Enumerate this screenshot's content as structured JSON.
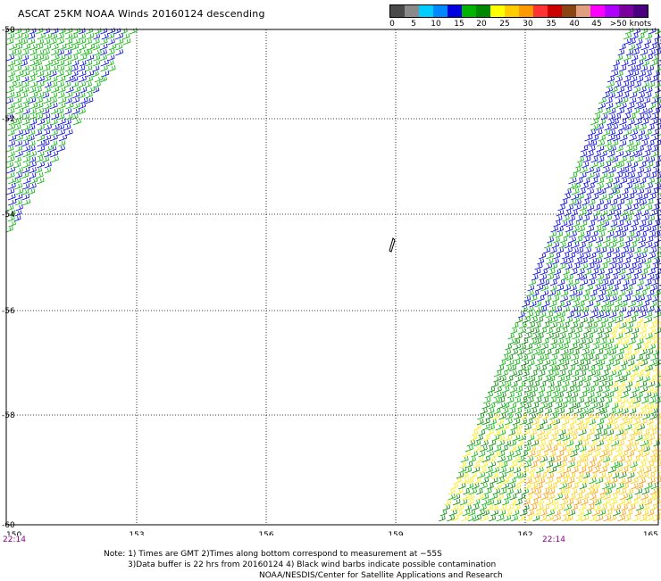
{
  "title": "ASCAT 25KM NOAA Winds 20160124 descending",
  "legend": {
    "colors": [
      "#4a4a4a",
      "#8a8a8a",
      "#00ccff",
      "#0088ff",
      "#0000e0",
      "#00b400",
      "#008800",
      "#ffff00",
      "#ffcc00",
      "#ff9900",
      "#ff3333",
      "#cc0000",
      "#8b4513",
      "#e0a080",
      "#ff00ff",
      "#b000ff",
      "#7a00a0",
      "#4b0082"
    ],
    "ticks": [
      {
        "label": "0",
        "value": 0
      },
      {
        "label": "5",
        "value": 5
      },
      {
        "label": "10",
        "value": 10
      },
      {
        "label": "15",
        "value": 15
      },
      {
        "label": "20",
        "value": 20
      },
      {
        "label": "25",
        "value": 25
      },
      {
        "label": "30",
        "value": 30
      },
      {
        "label": "35",
        "value": 35
      },
      {
        "label": "40",
        "value": 40
      },
      {
        "label": "45",
        "value": 45
      },
      {
        "label": ">50 knots",
        "value": 51
      }
    ]
  },
  "map": {
    "lon_ticks": [
      "150",
      "153",
      "156",
      "159",
      "162",
      "165"
    ],
    "lat_labels": [
      "-50",
      "-52",
      "-54",
      "-56",
      "-58",
      "-60"
    ],
    "times": [
      "22:14",
      "22:14"
    ]
  },
  "footer": {
    "line1": "Note: 1) Times are GMT 2)Times along bottom correspond to measurement at −55S",
    "line2": "3)Data buffer is 22 hrs from 20160124 4) Black wind barbs indicate possible contamination",
    "line3": "NOAA/NESDIS/Center for Satellite Applications and Research"
  }
}
